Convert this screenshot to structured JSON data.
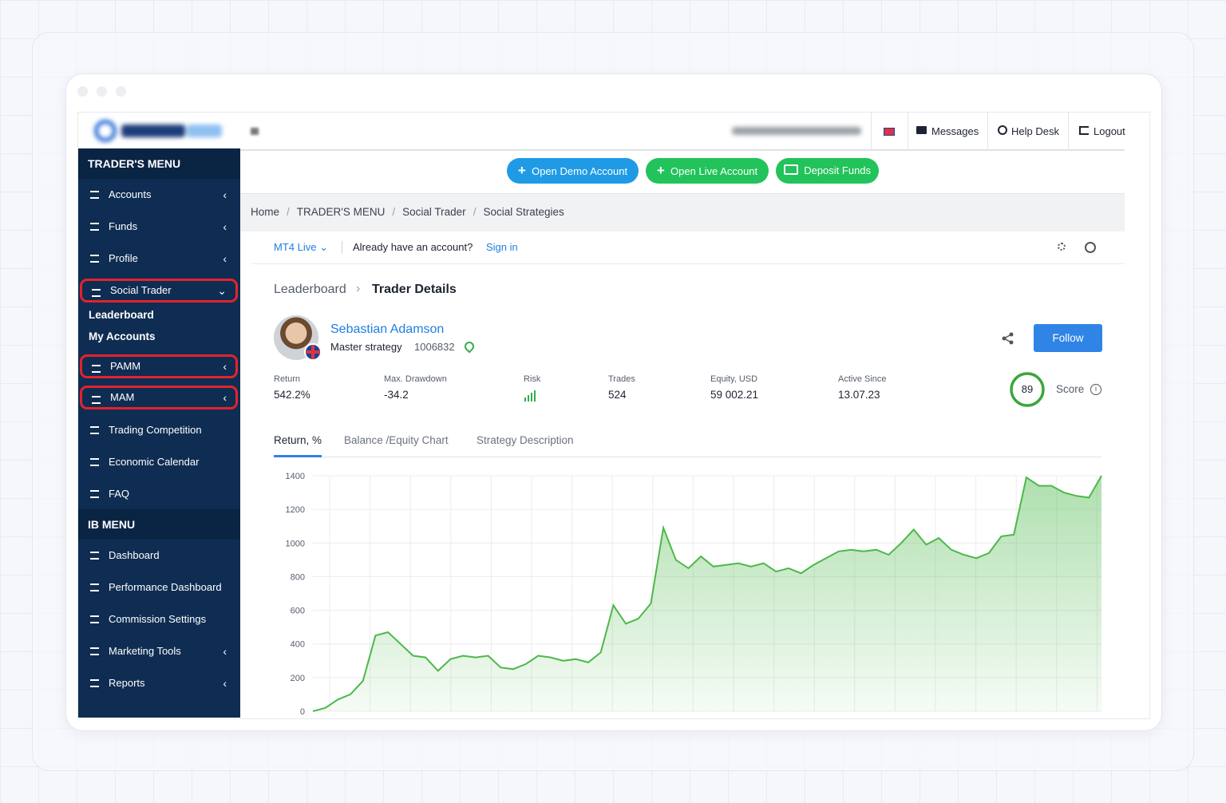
{
  "topbar": {
    "messages": "Messages",
    "help_desk": "Help Desk",
    "logout": "Logout"
  },
  "actions": [
    "Open Demo Account",
    "Open Live Account",
    "Deposit Funds"
  ],
  "sidebar": {
    "traders_menu": "TRADER'S MENU",
    "items": [
      "Accounts",
      "Funds",
      "Profile",
      "Social Trader"
    ],
    "submenu": [
      "Leaderboard",
      "My Accounts"
    ],
    "items2": [
      "PAMM",
      "MAM",
      "Trading Competition",
      "Economic Calendar",
      "FAQ"
    ],
    "ib_menu": "IB MENU",
    "ib_items": [
      "Dashboard",
      "Performance Dashboard",
      "Commission Settings",
      "Marketing Tools",
      "Reports"
    ]
  },
  "breadcrumb": [
    "Home",
    "TRADER'S MENU",
    "Social Trader",
    "Social Strategies"
  ],
  "account_bar": {
    "server": "MT4 Live",
    "prompt": "Already have an account?",
    "sign_in": "Sign in"
  },
  "nav": {
    "parent": "Leaderboard",
    "current": "Trader Details"
  },
  "trader": {
    "name": "Sebastian Adamson",
    "strategy": "Master strategy",
    "id": "1006832",
    "follow": "Follow",
    "score": "89",
    "score_label": "Score"
  },
  "stats": [
    {
      "label": "Return",
      "value": "542.2%"
    },
    {
      "label": "Max. Drawdown",
      "value": "-34.2"
    },
    {
      "label": "Risk"
    },
    {
      "label": "Trades",
      "value": "524"
    },
    {
      "label": "Equity, USD",
      "value": "59 002.21"
    },
    {
      "label": "Active Since",
      "value": "13.07.23"
    }
  ],
  "tabs": [
    "Return, %",
    "Balance /Equity Chart",
    "Strategy Description"
  ],
  "chart": {
    "type": "area",
    "color": "#4cb84a",
    "ylim": [
      0,
      1400
    ],
    "yticks": [
      0,
      200,
      400,
      600,
      800,
      1000,
      1200,
      1400
    ],
    "values": [
      0,
      20,
      70,
      100,
      180,
      450,
      470,
      400,
      330,
      320,
      240,
      310,
      330,
      320,
      330,
      260,
      250,
      280,
      330,
      320,
      300,
      310,
      290,
      350,
      630,
      520,
      550,
      640,
      1090,
      900,
      850,
      920,
      860,
      870,
      880,
      860,
      880,
      830,
      850,
      820,
      870,
      910,
      950,
      960,
      950,
      960,
      930,
      1000,
      1080,
      990,
      1030,
      960,
      930,
      910,
      940,
      1040,
      1050,
      1390,
      1340,
      1340,
      1300,
      1280,
      1270,
      1400
    ]
  }
}
